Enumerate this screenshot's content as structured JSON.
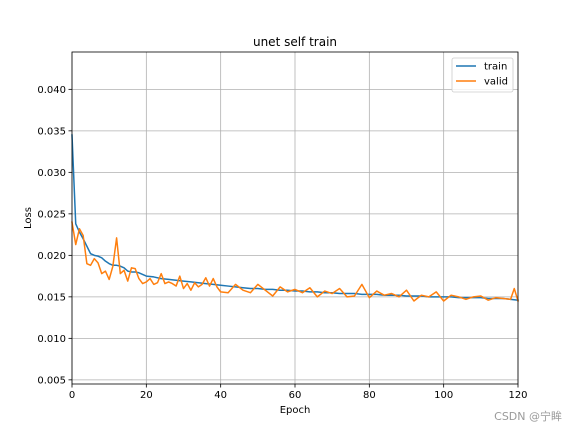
{
  "chart_data": {
    "type": "line",
    "title": "unet self train",
    "xlabel": "Epoch",
    "ylabel": "Loss",
    "xlim": [
      0,
      120
    ],
    "ylim": [
      0.0045,
      0.0445
    ],
    "xticks": [
      0,
      20,
      40,
      60,
      80,
      100,
      120
    ],
    "yticks": [
      0.005,
      0.01,
      0.015,
      0.02,
      0.025,
      0.03,
      0.035,
      0.04
    ],
    "ytick_labels": [
      "0.005",
      "0.010",
      "0.015",
      "0.020",
      "0.025",
      "0.030",
      "0.035",
      "0.040"
    ],
    "grid": true,
    "legend_position": "top-right",
    "series": [
      {
        "name": "train",
        "color": "#1f77b4",
        "x": [
          0,
          1,
          2,
          3,
          4,
          5,
          6,
          7,
          8,
          9,
          10,
          11,
          12,
          13,
          14,
          15,
          16,
          17,
          18,
          19,
          20,
          22,
          24,
          26,
          28,
          30,
          32,
          34,
          36,
          38,
          40,
          42,
          44,
          46,
          48,
          50,
          52,
          54,
          56,
          58,
          60,
          62,
          64,
          66,
          68,
          70,
          72,
          74,
          76,
          78,
          80,
          82,
          84,
          86,
          88,
          90,
          92,
          94,
          96,
          98,
          100,
          102,
          104,
          106,
          108,
          110,
          112,
          114,
          116,
          118,
          120
        ],
        "y": [
          0.0345,
          0.0238,
          0.0228,
          0.022,
          0.0211,
          0.0202,
          0.02,
          0.0199,
          0.0197,
          0.0193,
          0.019,
          0.0188,
          0.0188,
          0.0187,
          0.0185,
          0.0181,
          0.018,
          0.018,
          0.0179,
          0.0177,
          0.0175,
          0.0174,
          0.0172,
          0.0171,
          0.017,
          0.0169,
          0.0168,
          0.0167,
          0.0166,
          0.0165,
          0.0164,
          0.0163,
          0.0162,
          0.0161,
          0.016,
          0.016,
          0.0159,
          0.0159,
          0.0158,
          0.0158,
          0.0157,
          0.0157,
          0.0156,
          0.0156,
          0.0155,
          0.0155,
          0.0154,
          0.0154,
          0.0154,
          0.0153,
          0.0153,
          0.0153,
          0.0152,
          0.0152,
          0.0152,
          0.0151,
          0.0151,
          0.0151,
          0.015,
          0.015,
          0.015,
          0.015,
          0.0149,
          0.0149,
          0.0149,
          0.0149,
          0.0148,
          0.0148,
          0.0148,
          0.0147,
          0.0146
        ]
      },
      {
        "name": "valid",
        "color": "#ff7f0e",
        "x": [
          0,
          1,
          2,
          3,
          4,
          5,
          6,
          7,
          8,
          9,
          10,
          11,
          12,
          13,
          14,
          15,
          16,
          17,
          18,
          19,
          20,
          21,
          22,
          23,
          24,
          25,
          26,
          27,
          28,
          29,
          30,
          31,
          32,
          33,
          34,
          35,
          36,
          37,
          38,
          39,
          40,
          42,
          44,
          46,
          48,
          50,
          52,
          54,
          56,
          58,
          60,
          62,
          64,
          66,
          68,
          70,
          72,
          74,
          76,
          78,
          80,
          82,
          84,
          86,
          88,
          90,
          92,
          94,
          96,
          98,
          100,
          102,
          104,
          106,
          108,
          110,
          112,
          114,
          116,
          118,
          119,
          120
        ],
        "y": [
          0.024,
          0.0213,
          0.0232,
          0.0224,
          0.019,
          0.0188,
          0.0196,
          0.0191,
          0.0178,
          0.0181,
          0.0171,
          0.0187,
          0.0221,
          0.0178,
          0.0182,
          0.0169,
          0.0185,
          0.0184,
          0.0172,
          0.0166,
          0.0168,
          0.0172,
          0.0165,
          0.0167,
          0.0178,
          0.0166,
          0.0168,
          0.0166,
          0.0163,
          0.0175,
          0.016,
          0.0166,
          0.0158,
          0.0167,
          0.0162,
          0.0165,
          0.0173,
          0.0163,
          0.0172,
          0.0162,
          0.0156,
          0.0155,
          0.0165,
          0.0158,
          0.0155,
          0.0165,
          0.0158,
          0.0151,
          0.0162,
          0.0156,
          0.0159,
          0.0155,
          0.0161,
          0.015,
          0.0157,
          0.0154,
          0.016,
          0.015,
          0.0151,
          0.0165,
          0.0149,
          0.0157,
          0.0152,
          0.0154,
          0.015,
          0.0158,
          0.0145,
          0.0152,
          0.015,
          0.0156,
          0.0145,
          0.0152,
          0.015,
          0.0147,
          0.015,
          0.0151,
          0.0146,
          0.0149,
          0.0148,
          0.0147,
          0.016,
          0.0145
        ]
      }
    ]
  },
  "watermark": "CSDN @宁眸"
}
